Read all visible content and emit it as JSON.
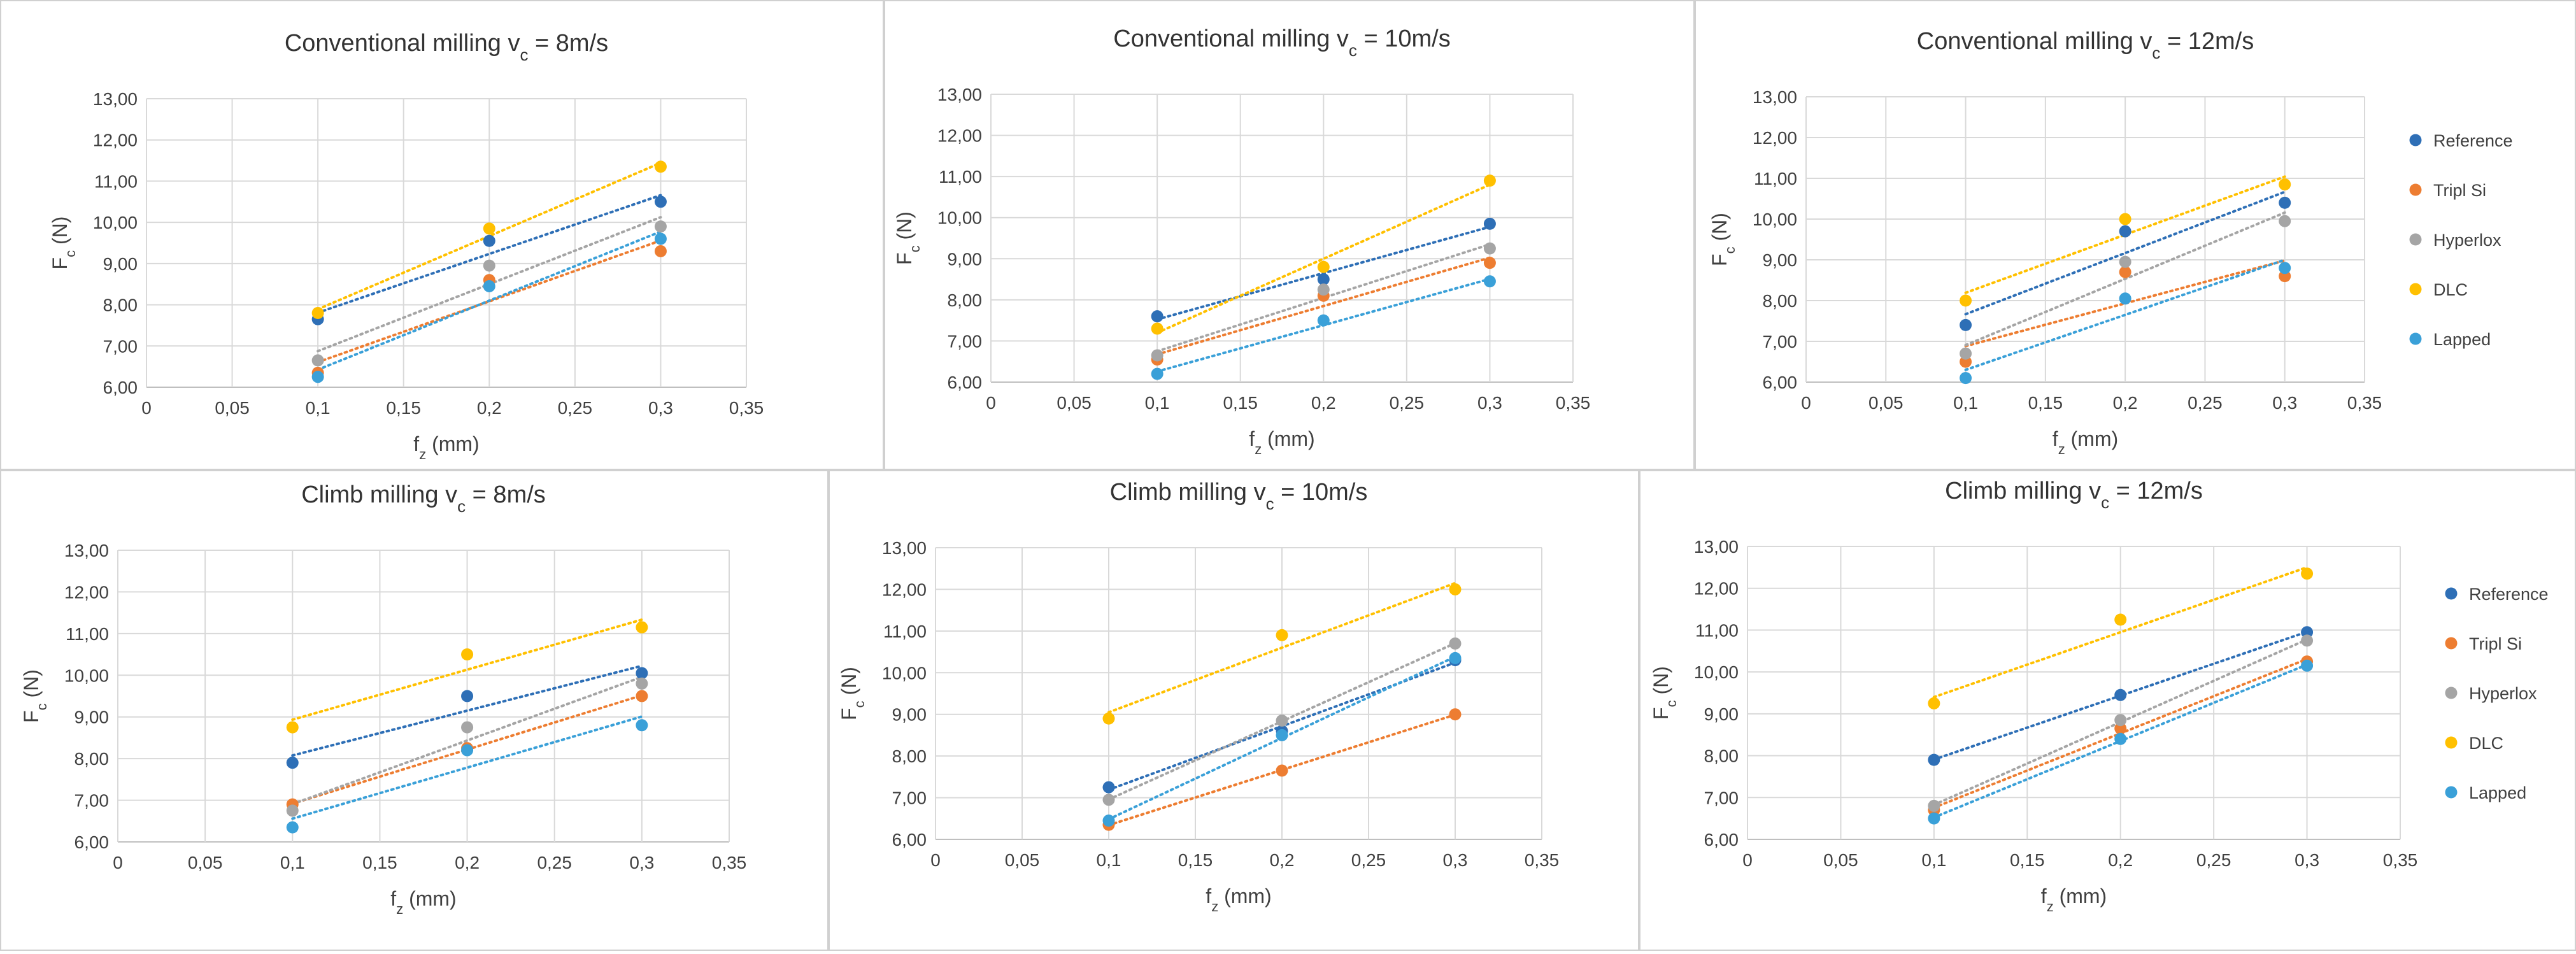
{
  "chart_data": [
    {
      "type": "scatter",
      "title": "Conventional milling v",
      "title_sub": "c",
      "title_tail": " = 8m/s",
      "xlabel": "f",
      "xlabel_sub": "z",
      "xlabel_tail": "  (mm)",
      "ylabel": "F",
      "ylabel_sub": "c",
      "ylabel_tail": " (N)",
      "xlim": [
        0,
        0.35
      ],
      "ylim": [
        6,
        13
      ],
      "xticks": [
        "0",
        "0,05",
        "0,1",
        "0,15",
        "0,2",
        "0,25",
        "0,3",
        "0,35"
      ],
      "yticks": [
        "6,00",
        "7,00",
        "8,00",
        "9,00",
        "10,00",
        "11,00",
        "12,00",
        "13,00"
      ],
      "grid": true,
      "trendlines": "linear, dotted",
      "legend": "none",
      "x": [
        0.1,
        0.2,
        0.3
      ],
      "series": [
        {
          "name": "Reference",
          "values": [
            7.65,
            9.55,
            10.5
          ]
        },
        {
          "name": "Tripl Si",
          "values": [
            6.35,
            8.6,
            9.3
          ]
        },
        {
          "name": "Hyperlox",
          "values": [
            6.65,
            8.95,
            9.9
          ]
        },
        {
          "name": "DLC",
          "values": [
            7.8,
            9.85,
            11.35
          ]
        },
        {
          "name": "Lapped",
          "values": [
            6.25,
            8.45,
            9.6
          ]
        }
      ]
    },
    {
      "type": "scatter",
      "title": "Conventional milling v",
      "title_sub": "c",
      "title_tail": " = 10m/s",
      "xlabel": "f",
      "xlabel_sub": "z",
      "xlabel_tail": "  (mm)",
      "ylabel": "F",
      "ylabel_sub": "c",
      "ylabel_tail": " (N)",
      "xlim": [
        0,
        0.35
      ],
      "ylim": [
        6,
        13
      ],
      "xticks": [
        "0",
        "0,05",
        "0,1",
        "0,15",
        "0,2",
        "0,25",
        "0,3",
        "0,35"
      ],
      "yticks": [
        "6,00",
        "7,00",
        "8,00",
        "9,00",
        "10,00",
        "11,00",
        "12,00",
        "13,00"
      ],
      "grid": true,
      "trendlines": "linear, dotted",
      "legend": "none",
      "x": [
        0.1,
        0.2,
        0.3
      ],
      "series": [
        {
          "name": "Reference",
          "values": [
            7.6,
            8.5,
            9.85
          ]
        },
        {
          "name": "Tripl Si",
          "values": [
            6.55,
            8.1,
            8.9
          ]
        },
        {
          "name": "Hyperlox",
          "values": [
            6.65,
            8.25,
            9.25
          ]
        },
        {
          "name": "DLC",
          "values": [
            7.3,
            8.8,
            10.9
          ]
        },
        {
          "name": "Lapped",
          "values": [
            6.2,
            7.5,
            8.45
          ]
        }
      ]
    },
    {
      "type": "scatter",
      "title": "Conventional milling v",
      "title_sub": "c",
      "title_tail": " = 12m/s",
      "xlabel": "f",
      "xlabel_sub": "z",
      "xlabel_tail": "  (mm)",
      "ylabel": "F",
      "ylabel_sub": "c",
      "ylabel_tail": " (N)",
      "xlim": [
        0,
        0.35
      ],
      "ylim": [
        6,
        13
      ],
      "xticks": [
        "0",
        "0,05",
        "0,1",
        "0,15",
        "0,2",
        "0,25",
        "0,3",
        "0,35"
      ],
      "yticks": [
        "6,00",
        "7,00",
        "8,00",
        "9,00",
        "10,00",
        "11,00",
        "12,00",
        "13,00"
      ],
      "grid": true,
      "trendlines": "linear, dotted",
      "legend": "right",
      "x": [
        0.1,
        0.2,
        0.3
      ],
      "series": [
        {
          "name": "Reference",
          "values": [
            7.4,
            9.7,
            10.4
          ]
        },
        {
          "name": "Tripl Si",
          "values": [
            6.5,
            8.7,
            8.6
          ]
        },
        {
          "name": "Hyperlox",
          "values": [
            6.7,
            8.95,
            9.95
          ]
        },
        {
          "name": "DLC",
          "values": [
            8.0,
            10.0,
            10.85
          ]
        },
        {
          "name": "Lapped",
          "values": [
            6.1,
            8.05,
            8.8
          ]
        }
      ]
    },
    {
      "type": "scatter",
      "title": "Climb milling v",
      "title_sub": "c",
      "title_tail": " = 8m/s",
      "xlabel": "f",
      "xlabel_sub": "z",
      "xlabel_tail": "  (mm)",
      "ylabel": "F",
      "ylabel_sub": "c",
      "ylabel_tail": " (N)",
      "xlim": [
        0,
        0.35
      ],
      "ylim": [
        6,
        13
      ],
      "xticks": [
        "0",
        "0,05",
        "0,1",
        "0,15",
        "0,2",
        "0,25",
        "0,3",
        "0,35"
      ],
      "yticks": [
        "6,00",
        "7,00",
        "8,00",
        "9,00",
        "10,00",
        "11,00",
        "12,00",
        "13,00"
      ],
      "grid": true,
      "trendlines": "linear, dotted",
      "legend": "none",
      "x": [
        0.1,
        0.2,
        0.3
      ],
      "series": [
        {
          "name": "Reference",
          "values": [
            7.9,
            9.5,
            10.05
          ]
        },
        {
          "name": "Tripl Si",
          "values": [
            6.9,
            8.25,
            9.5
          ]
        },
        {
          "name": "Hyperlox",
          "values": [
            6.75,
            8.75,
            9.8
          ]
        },
        {
          "name": "DLC",
          "values": [
            8.75,
            10.5,
            11.15
          ]
        },
        {
          "name": "Lapped",
          "values": [
            6.35,
            8.2,
            8.8
          ]
        }
      ]
    },
    {
      "type": "scatter",
      "title": "Climb milling v",
      "title_sub": "c",
      "title_tail": " = 10m/s",
      "xlabel": "f",
      "xlabel_sub": "z",
      "xlabel_tail": "  (mm)",
      "ylabel": "F",
      "ylabel_sub": "c",
      "ylabel_tail": " (N)",
      "xlim": [
        0,
        0.35
      ],
      "ylim": [
        6,
        13
      ],
      "xticks": [
        "0",
        "0,05",
        "0,1",
        "0,15",
        "0,2",
        "0,25",
        "0,3",
        "0,35"
      ],
      "yticks": [
        "6,00",
        "7,00",
        "8,00",
        "9,00",
        "10,00",
        "11,00",
        "12,00",
        "13,00"
      ],
      "grid": true,
      "trendlines": "linear, dotted",
      "legend": "none",
      "x": [
        0.1,
        0.2,
        0.3
      ],
      "series": [
        {
          "name": "Reference",
          "values": [
            7.25,
            8.6,
            10.3
          ]
        },
        {
          "name": "Tripl Si",
          "values": [
            6.35,
            7.65,
            9.0
          ]
        },
        {
          "name": "Hyperlox",
          "values": [
            6.95,
            8.85,
            10.7
          ]
        },
        {
          "name": "DLC",
          "values": [
            8.9,
            10.9,
            12.0
          ]
        },
        {
          "name": "Lapped",
          "values": [
            6.45,
            8.5,
            10.35
          ]
        }
      ]
    },
    {
      "type": "scatter",
      "title": "Climb milling v",
      "title_sub": "c",
      "title_tail": " = 12m/s",
      "xlabel": "f",
      "xlabel_sub": "z",
      "xlabel_tail": "  (mm)",
      "ylabel": "F",
      "ylabel_sub": "c",
      "ylabel_tail": " (N)",
      "xlim": [
        0,
        0.35
      ],
      "ylim": [
        6,
        13
      ],
      "xticks": [
        "0",
        "0,05",
        "0,1",
        "0,15",
        "0,2",
        "0,25",
        "0,3",
        "0,35"
      ],
      "yticks": [
        "6,00",
        "7,00",
        "8,00",
        "9,00",
        "10,00",
        "11,00",
        "12,00",
        "13,00"
      ],
      "grid": true,
      "trendlines": "linear, dotted",
      "legend": "right",
      "x": [
        0.1,
        0.2,
        0.3
      ],
      "series": [
        {
          "name": "Reference",
          "values": [
            7.9,
            9.45,
            10.95
          ]
        },
        {
          "name": "Tripl Si",
          "values": [
            6.7,
            8.65,
            10.25
          ]
        },
        {
          "name": "Hyperlox",
          "values": [
            6.8,
            8.85,
            10.75
          ]
        },
        {
          "name": "DLC",
          "values": [
            9.25,
            11.25,
            12.35
          ]
        },
        {
          "name": "Lapped",
          "values": [
            6.5,
            8.4,
            10.15
          ]
        }
      ]
    }
  ],
  "series_colors": {
    "Reference": "#2e6fb6",
    "Tripl Si": "#ed7d31",
    "Hyperlox": "#a5a5a5",
    "DLC": "#ffc000",
    "Lapped": "#3aa0d8"
  },
  "style": {
    "grid_color": "#d9d9d9",
    "axis_color": "#bfbfbf",
    "text_color": "#404040",
    "title_color": "#333333",
    "panel_border": "#d0d0d0"
  }
}
